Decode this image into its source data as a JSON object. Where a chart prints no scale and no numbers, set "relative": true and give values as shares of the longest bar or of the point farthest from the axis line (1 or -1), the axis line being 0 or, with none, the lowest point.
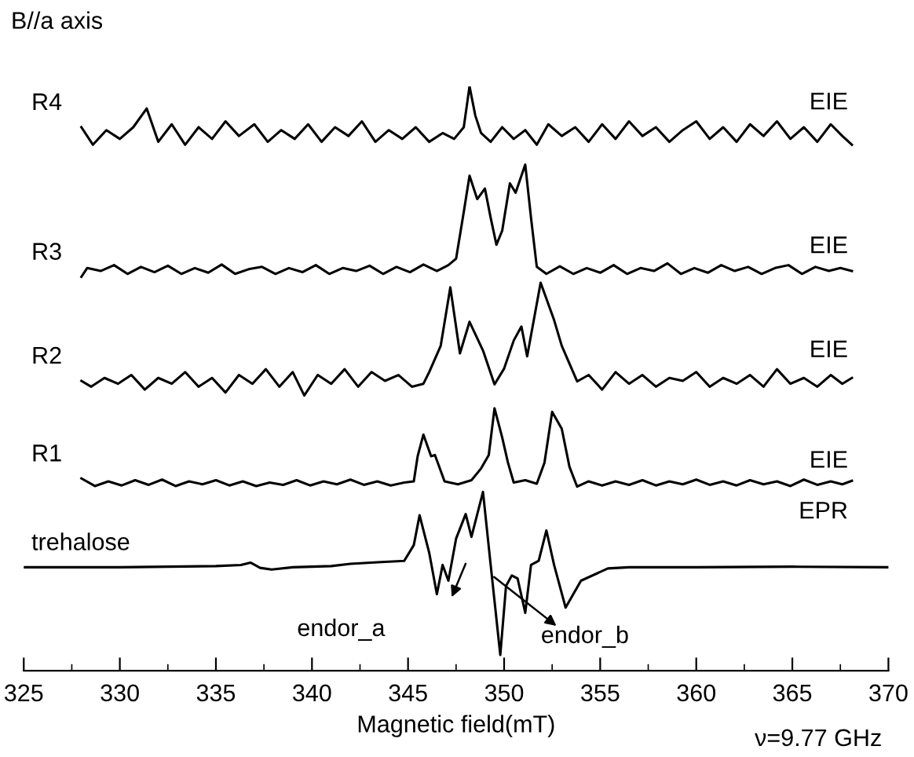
{
  "chart_data": {
    "type": "line",
    "relative": true,
    "xlabel": "Magnetic field(mT)",
    "xlim": [
      325,
      370
    ],
    "xticks": [
      325,
      330,
      335,
      340,
      345,
      350,
      355,
      360,
      365,
      370
    ],
    "grid": false,
    "legend": false,
    "marker": "none",
    "line_style": "solid",
    "tick_labels": "x",
    "annotations": [
      "B//a axis",
      "ν=9.77 GHz",
      "EIE",
      "EIE",
      "EIE",
      "EIE",
      "EPR",
      "endor_a",
      "endor_b"
    ],
    "series": [
      {
        "name": "R4",
        "color": "#000000",
        "x": [
          328,
          328.6,
          329.3,
          330,
          330.7,
          331.4,
          332,
          332.7,
          333.4,
          334.1,
          334.8,
          335.5,
          336.2,
          337,
          337.7,
          338.4,
          339.1,
          339.8,
          340.5,
          341.2,
          341.9,
          342.6,
          343.3,
          344,
          344.7,
          345.4,
          346.1,
          346.8,
          347.4,
          347.9,
          348.2,
          348.5,
          348.8,
          349.3,
          349.9,
          350.5,
          351.1,
          351.7,
          352.3,
          353,
          353.7,
          354.4,
          355.1,
          355.8,
          356.5,
          357.2,
          357.9,
          358.6,
          359.3,
          360,
          360.7,
          361.4,
          362.1,
          362.8,
          363.5,
          364.2,
          364.9,
          365.6,
          366.3,
          367,
          367.6,
          368.1
        ],
        "values": [
          0.93,
          0.9,
          0.925,
          0.91,
          0.93,
          0.962,
          0.905,
          0.935,
          0.9,
          0.93,
          0.91,
          0.94,
          0.915,
          0.935,
          0.905,
          0.925,
          0.91,
          0.935,
          0.905,
          0.93,
          0.915,
          0.94,
          0.905,
          0.925,
          0.91,
          0.93,
          0.905,
          0.92,
          0.91,
          0.93,
          1.0,
          0.95,
          0.92,
          0.905,
          0.93,
          0.91,
          0.925,
          0.9,
          0.935,
          0.915,
          0.93,
          0.905,
          0.935,
          0.91,
          0.94,
          0.915,
          0.93,
          0.905,
          0.925,
          0.94,
          0.91,
          0.93,
          0.905,
          0.935,
          0.915,
          0.94,
          0.91,
          0.93,
          0.905,
          0.935,
          0.915,
          0.9
        ]
      },
      {
        "name": "R3",
        "color": "#000000",
        "x": [
          328,
          328.3,
          329,
          329.7,
          330.4,
          331.1,
          331.8,
          332.5,
          333.2,
          333.9,
          334.6,
          335.3,
          336,
          336.7,
          337.4,
          338.1,
          338.8,
          339.5,
          340.2,
          340.9,
          341.6,
          342.3,
          343,
          343.7,
          344.4,
          345.1,
          345.8,
          346.5,
          347.1,
          347.5,
          347.9,
          348.2,
          348.6,
          349.0,
          349.3,
          349.6,
          349.9,
          350.3,
          350.6,
          351.1,
          351.4,
          351.7,
          352.2,
          352.9,
          353.6,
          354.3,
          355,
          355.7,
          356.4,
          357.1,
          357.8,
          358.5,
          359.2,
          359.9,
          360.6,
          361.3,
          362,
          362.7,
          363.4,
          364.1,
          364.8,
          365.5,
          366.2,
          366.9,
          367.5,
          368.1
        ],
        "values": [
          0.674,
          0.689,
          0.684,
          0.694,
          0.679,
          0.691,
          0.682,
          0.693,
          0.679,
          0.689,
          0.681,
          0.695,
          0.679,
          0.687,
          0.691,
          0.679,
          0.689,
          0.682,
          0.694,
          0.679,
          0.689,
          0.684,
          0.693,
          0.679,
          0.691,
          0.682,
          0.695,
          0.684,
          0.694,
          0.705,
          0.785,
          0.847,
          0.807,
          0.825,
          0.775,
          0.729,
          0.753,
          0.834,
          0.818,
          0.866,
          0.775,
          0.691,
          0.679,
          0.692,
          0.679,
          0.689,
          0.681,
          0.694,
          0.679,
          0.689,
          0.684,
          0.697,
          0.679,
          0.689,
          0.681,
          0.694,
          0.684,
          0.691,
          0.679,
          0.689,
          0.694,
          0.679,
          0.691,
          0.684,
          0.689,
          0.684
        ]
      },
      {
        "name": "R2",
        "color": "#000000",
        "x": [
          328,
          328.5,
          329.2,
          329.9,
          330.6,
          331.3,
          332,
          332.7,
          333.4,
          334.1,
          334.8,
          335.5,
          336.2,
          336.9,
          337.6,
          338.3,
          339,
          339.6,
          340.3,
          341,
          341.7,
          342.4,
          343.1,
          343.8,
          344.5,
          345.2,
          345.8,
          346.1,
          346.7,
          347.2,
          347.7,
          348.2,
          348.9,
          349.5,
          350,
          350.5,
          350.9,
          351.2,
          351.9,
          352.6,
          353,
          353.8,
          354.4,
          355.1,
          355.8,
          356.5,
          357.2,
          357.9,
          358.6,
          359.3,
          360,
          360.7,
          361.4,
          362.1,
          362.8,
          363.5,
          364.2,
          364.9,
          365.6,
          366.3,
          367,
          367.6,
          368.1
        ],
        "values": [
          0.496,
          0.486,
          0.501,
          0.491,
          0.506,
          0.481,
          0.501,
          0.491,
          0.511,
          0.486,
          0.501,
          0.476,
          0.506,
          0.491,
          0.516,
          0.486,
          0.511,
          0.471,
          0.506,
          0.491,
          0.516,
          0.486,
          0.511,
          0.496,
          0.506,
          0.486,
          0.491,
          0.511,
          0.556,
          0.656,
          0.543,
          0.597,
          0.548,
          0.49,
          0.517,
          0.565,
          0.589,
          0.538,
          0.664,
          0.6,
          0.556,
          0.495,
          0.506,
          0.481,
          0.511,
          0.491,
          0.506,
          0.486,
          0.501,
          0.496,
          0.511,
          0.486,
          0.501,
          0.491,
          0.506,
          0.486,
          0.516,
          0.491,
          0.501,
          0.486,
          0.506,
          0.491,
          0.501
        ]
      },
      {
        "name": "R1",
        "color": "#000000",
        "x": [
          328,
          328.7,
          329.4,
          330.1,
          330.8,
          331.5,
          332.2,
          332.9,
          333.6,
          334.3,
          335,
          335.7,
          336.4,
          337.1,
          337.8,
          338.5,
          339.2,
          339.9,
          340.6,
          341.3,
          342,
          342.7,
          343.4,
          344.1,
          344.8,
          345.3,
          345.5,
          345.8,
          346.2,
          346.4,
          346.9,
          347.6,
          348.3,
          348.8,
          349.2,
          349.5,
          349.9,
          350.2,
          350.5,
          351.1,
          351.7,
          352.1,
          352.5,
          353.0,
          353.4,
          353.8,
          354.4,
          355.1,
          355.8,
          356.5,
          357.2,
          357.9,
          358.6,
          359.3,
          360,
          360.7,
          361.4,
          362.1,
          362.8,
          363.5,
          364.2,
          364.9,
          365.6,
          366.3,
          367,
          367.6,
          368.1
        ],
        "values": [
          0.329,
          0.316,
          0.324,
          0.317,
          0.326,
          0.318,
          0.327,
          0.316,
          0.324,
          0.319,
          0.326,
          0.317,
          0.324,
          0.316,
          0.322,
          0.318,
          0.326,
          0.317,
          0.324,
          0.319,
          0.327,
          0.318,
          0.324,
          0.317,
          0.322,
          0.324,
          0.367,
          0.404,
          0.367,
          0.369,
          0.324,
          0.319,
          0.326,
          0.346,
          0.369,
          0.449,
          0.399,
          0.356,
          0.322,
          0.326,
          0.32,
          0.356,
          0.443,
          0.414,
          0.349,
          0.315,
          0.324,
          0.317,
          0.324,
          0.318,
          0.326,
          0.317,
          0.324,
          0.319,
          0.327,
          0.318,
          0.324,
          0.317,
          0.326,
          0.319,
          0.324,
          0.316,
          0.327,
          0.318,
          0.324,
          0.319,
          0.325
        ]
      },
      {
        "name": "trehalose",
        "color": "#000000",
        "x": [
          325,
          330,
          335,
          336.3,
          336.8,
          337.3,
          337.9,
          339,
          341,
          342,
          343.6,
          344.8,
          345.3,
          345.6,
          346.1,
          346.5,
          346.8,
          347.1,
          347.5,
          348.0,
          348.3,
          348.9,
          349.3,
          349.8,
          350.1,
          350.4,
          350.7,
          351.1,
          351.4,
          351.8,
          352.2,
          352.6,
          353.2,
          354.0,
          355.4,
          356.5,
          360,
          365,
          370
        ],
        "values": [
          0.177,
          0.177,
          0.179,
          0.181,
          0.185,
          0.176,
          0.173,
          0.177,
          0.179,
          0.183,
          0.186,
          0.188,
          0.215,
          0.266,
          0.202,
          0.131,
          0.181,
          0.154,
          0.226,
          0.268,
          0.229,
          0.306,
          0.181,
          0.027,
          0.145,
          0.163,
          0.158,
          0.099,
          0.181,
          0.188,
          0.24,
          0.181,
          0.108,
          0.154,
          0.175,
          0.177,
          0.177,
          0.178,
          0.177
        ]
      }
    ]
  }
}
